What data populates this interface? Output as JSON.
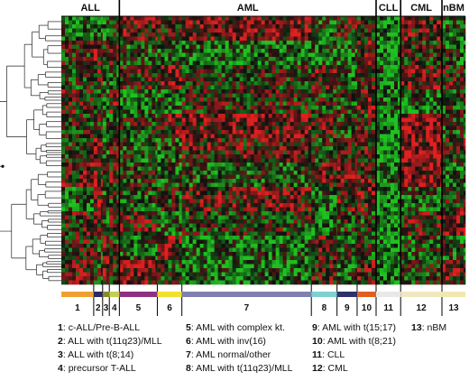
{
  "chart_data": {
    "type": "heatmap",
    "title": "",
    "xlabel": "",
    "ylabel": "",
    "top_groups": [
      {
        "label": "ALL",
        "class_start": 1,
        "class_end": 4
      },
      {
        "label": "AML",
        "class_start": 5,
        "class_end": 10
      },
      {
        "label": "CLL",
        "class_start": 11,
        "class_end": 11
      },
      {
        "label": "CML",
        "class_start": 12,
        "class_end": 12
      },
      {
        "label": "nBM",
        "class_start": 13,
        "class_end": 13
      }
    ],
    "classes": [
      {
        "id": "1",
        "name": "c-ALL/Pre-B-ALL",
        "color": "#f0a030",
        "relative_width": 29
      },
      {
        "id": "2",
        "name": "ALL with t(11q23)/MLL",
        "color": "#2a2a6a",
        "relative_width": 8
      },
      {
        "id": "3",
        "name": "ALL with t(8;14)",
        "color": "#8a8a2a",
        "relative_width": 6
      },
      {
        "id": "4",
        "name": "precursor T-ALL",
        "color": "#c0d050",
        "relative_width": 9
      },
      {
        "id": "5",
        "name": "AML with complex kt.",
        "color": "#903080",
        "relative_width": 34
      },
      {
        "id": "6",
        "name": "AML with inv(16)",
        "color": "#f0e030",
        "relative_width": 22
      },
      {
        "id": "7",
        "name": "AML normal/other",
        "color": "#8080b0",
        "relative_width": 116
      },
      {
        "id": "8",
        "name": "AML with t(11q23)/MLL",
        "color": "#80d0d0",
        "relative_width": 23
      },
      {
        "id": "9",
        "name": "AML with t(15;17)",
        "color": "#30306a",
        "relative_width": 18
      },
      {
        "id": "10",
        "name": "AML with t(8;21)",
        "color": "#e06020",
        "relative_width": 17
      },
      {
        "id": "11",
        "name": "CLL",
        "color": "#e8e8e8",
        "relative_width": 22
      },
      {
        "id": "12",
        "name": "CML",
        "color": "#f0e8c0",
        "relative_width": 37
      },
      {
        "id": "13",
        "name": "nBM",
        "color": "#f0e8b0",
        "relative_width": 21
      }
    ],
    "color_scale": {
      "low": "#20c020",
      "mid": "#101010",
      "high": "#e02020"
    }
  }
}
